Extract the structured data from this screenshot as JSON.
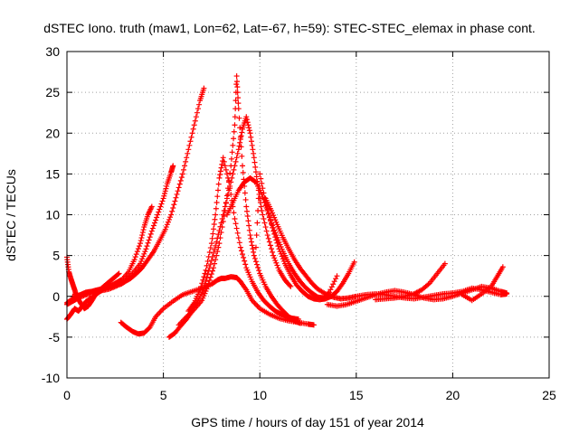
{
  "chart_data": {
    "type": "scatter",
    "title": "dSTEC Iono. truth (maw1, Lon=62, Lat=-67, h=59): STEC-STEC_elemax in phase cont.",
    "xlabel": "GPS time / hours of day 151 of year 2014",
    "ylabel": "dSTEC  / TECUs",
    "xlim": [
      0,
      25
    ],
    "ylim": [
      -10,
      30
    ],
    "xticks": [
      0,
      5,
      10,
      15,
      20,
      25
    ],
    "yticks": [
      -10,
      -5,
      0,
      5,
      10,
      15,
      20,
      25,
      30
    ],
    "grid": true,
    "marker": "+",
    "color": "#ff0000",
    "series": [
      {
        "x": [
          0.0,
          0.2,
          0.5,
          0.8,
          1.0,
          1.3,
          1.6,
          2.0,
          2.4,
          2.8,
          3.0,
          3.3,
          3.6,
          3.9,
          4.2,
          4.5,
          4.8,
          5.1,
          5.4,
          5.7,
          6.0,
          6.3,
          6.6,
          6.9,
          7.1
        ],
        "y": [
          -0.8,
          -0.5,
          0.0,
          0.3,
          0.5,
          0.6,
          0.8,
          1.0,
          1.2,
          1.5,
          1.8,
          2.2,
          2.8,
          3.5,
          4.5,
          5.5,
          6.8,
          8.2,
          10.0,
          12.5,
          15.0,
          18.0,
          21.0,
          24.0,
          25.5
        ]
      },
      {
        "x": [
          0.0,
          0.3,
          0.6,
          1.0,
          1.4,
          1.8,
          2.2,
          2.6,
          3.0,
          3.4,
          3.8,
          4.1,
          4.4,
          4.7,
          5.0,
          5.2,
          5.4,
          5.5
        ],
        "y": [
          -1.0,
          -0.6,
          -0.2,
          0.2,
          0.4,
          0.7,
          0.9,
          1.3,
          1.8,
          2.8,
          4.0,
          5.8,
          8.0,
          10.0,
          12.0,
          13.8,
          15.2,
          16.0
        ]
      },
      {
        "x": [
          0.3,
          0.8,
          1.3,
          1.8,
          2.3,
          2.8,
          3.2,
          3.5,
          3.8,
          4.0,
          4.2,
          4.4
        ],
        "y": [
          0.0,
          0.2,
          0.6,
          0.9,
          1.3,
          1.9,
          3.0,
          4.5,
          6.5,
          8.5,
          10.0,
          11.0
        ]
      },
      {
        "x": [
          2.8,
          3.1,
          3.4,
          3.7,
          4.0,
          4.3,
          4.6,
          5.0,
          5.5,
          6.0,
          6.5,
          7.0,
          7.5,
          7.8,
          8.0,
          8.2,
          8.5,
          8.8,
          9.0,
          9.3,
          9.6,
          10.0,
          10.5,
          11.0,
          11.5,
          12.0,
          12.5,
          12.8
        ],
        "y": [
          -3.2,
          -3.8,
          -4.3,
          -4.6,
          -4.5,
          -3.8,
          -2.5,
          -1.5,
          -0.6,
          0.2,
          0.6,
          1.0,
          1.5,
          2.0,
          2.2,
          2.2,
          2.4,
          2.3,
          1.8,
          0.8,
          -0.5,
          -1.5,
          -2.2,
          -2.7,
          -3.0,
          -3.2,
          -3.4,
          -3.5
        ]
      },
      {
        "x": [
          5.3,
          5.6,
          5.9,
          6.2,
          6.5,
          6.8,
          7.1,
          7.4,
          7.7,
          8.0,
          8.3,
          8.6,
          8.9,
          9.1,
          9.3,
          9.5,
          9.7,
          9.9,
          10.1,
          10.4,
          10.7,
          11.0,
          11.3,
          11.6
        ],
        "y": [
          -5.0,
          -4.5,
          -3.6,
          -2.8,
          -1.8,
          -0.5,
          1.0,
          3.5,
          6.2,
          9.0,
          12.0,
          15.0,
          18.0,
          20.5,
          22.0,
          20.0,
          17.0,
          13.5,
          10.5,
          7.5,
          5.0,
          3.2,
          2.0,
          1.2
        ]
      },
      {
        "x": [
          5.8,
          6.2,
          6.6,
          7.0,
          7.3,
          7.6,
          7.9,
          8.2,
          8.5,
          8.7,
          8.8,
          8.9,
          9.1,
          9.3,
          9.5,
          9.7,
          10.0,
          10.3,
          10.6,
          10.9,
          11.2,
          11.5,
          11.8,
          12.1
        ],
        "y": [
          -3.5,
          -2.5,
          -1.6,
          -0.5,
          1.2,
          3.5,
          6.5,
          10.5,
          16.0,
          21.0,
          27.0,
          23.0,
          16.0,
          11.0,
          7.5,
          5.0,
          2.8,
          1.2,
          0.0,
          -1.0,
          -1.8,
          -2.5,
          -3.0,
          -3.3
        ]
      },
      {
        "x": [
          6.3,
          6.6,
          6.9,
          7.2,
          7.5,
          7.7,
          7.9,
          8.1,
          8.4,
          8.7,
          9.0,
          9.3,
          9.6,
          9.9,
          10.2,
          10.5,
          10.8,
          11.1,
          11.4,
          11.7,
          12.0
        ],
        "y": [
          -1.8,
          -0.8,
          0.8,
          3.2,
          6.5,
          10.0,
          14.5,
          17.0,
          14.0,
          9.5,
          6.0,
          3.5,
          1.8,
          0.5,
          -0.5,
          -1.2,
          -1.8,
          -2.2,
          -2.5,
          -2.7,
          -2.8
        ]
      },
      {
        "x": [
          8.3,
          8.6,
          8.9,
          9.2,
          9.5,
          9.8,
          10.1,
          10.4,
          10.7,
          11.0,
          11.3,
          11.6,
          11.9,
          12.2,
          12.5,
          12.8,
          13.1,
          13.4,
          13.7,
          14.0,
          14.3,
          14.6,
          14.9
        ],
        "y": [
          10.0,
          11.5,
          13.0,
          14.0,
          14.5,
          14.0,
          12.5,
          10.5,
          8.0,
          5.8,
          4.0,
          2.6,
          1.4,
          0.6,
          0.0,
          -0.3,
          -0.4,
          -0.3,
          0.0,
          0.6,
          1.6,
          2.8,
          4.2
        ]
      },
      {
        "x": [
          9.8,
          10.0,
          10.3,
          10.6,
          10.9,
          11.2,
          11.5,
          11.8,
          12.1,
          12.4,
          12.7,
          13.0,
          13.3,
          13.6,
          14.0
        ],
        "y": [
          6.0,
          15.0,
          11.5,
          9.0,
          7.2,
          5.5,
          4.0,
          2.8,
          1.8,
          1.0,
          0.4,
          -0.1,
          -0.2,
          0.5,
          2.5
        ]
      },
      {
        "x": [
          10.3,
          10.6,
          10.9,
          11.2,
          11.5,
          11.8,
          12.1,
          12.4,
          12.7,
          13.0,
          13.4,
          13.8,
          14.2,
          14.6,
          15.0,
          15.5,
          16.0,
          16.5,
          17.0,
          17.5,
          18.0,
          18.5,
          19.0,
          19.5,
          20.0,
          20.5,
          21.0,
          21.5,
          22.0,
          22.5,
          22.8
        ],
        "y": [
          12.0,
          10.5,
          8.8,
          7.2,
          5.8,
          4.5,
          3.4,
          2.5,
          1.6,
          0.9,
          0.3,
          -0.1,
          -0.3,
          -0.2,
          0.0,
          0.2,
          0.3,
          0.2,
          0.0,
          -0.2,
          -0.3,
          -0.1,
          0.1,
          0.3,
          0.4,
          0.6,
          1.0,
          0.8,
          0.5,
          0.2,
          0.3
        ]
      },
      {
        "x": [
          13.5,
          14.0,
          14.5,
          15.0,
          15.5,
          16.0,
          16.5,
          17.0,
          17.5,
          18.0,
          18.5,
          19.0,
          19.5,
          20.0,
          20.5,
          21.0,
          21.5,
          22.0,
          22.5,
          22.8
        ],
        "y": [
          -1.0,
          -1.2,
          -1.0,
          -0.6,
          -0.2,
          0.2,
          0.5,
          0.7,
          0.5,
          0.2,
          -0.2,
          -0.4,
          -0.3,
          0.0,
          0.4,
          0.8,
          1.2,
          1.0,
          0.6,
          0.4
        ]
      },
      {
        "x": [
          16.0,
          16.5,
          17.0,
          17.5,
          18.0,
          18.4,
          18.8,
          19.2,
          19.6
        ],
        "y": [
          -0.4,
          -0.3,
          -0.2,
          0.0,
          0.3,
          0.8,
          1.6,
          2.8,
          4.0
        ]
      },
      {
        "x": [
          20.5,
          21.0,
          21.5,
          22.0,
          22.3,
          22.6
        ],
        "y": [
          0.2,
          -0.5,
          0.3,
          1.2,
          2.4,
          3.6
        ]
      },
      {
        "x": [
          0.0,
          0.1,
          0.2,
          0.3,
          0.4,
          0.5,
          0.7,
          0.9,
          1.1,
          1.3,
          1.5,
          1.8,
          2.1,
          2.4,
          2.7
        ],
        "y": [
          4.8,
          3.0,
          2.2,
          1.5,
          0.8,
          0.0,
          -0.8,
          -1.5,
          -1.2,
          -0.5,
          0.3,
          1.0,
          1.6,
          2.2,
          2.8
        ]
      },
      {
        "x": [
          0.0,
          0.2,
          0.4,
          0.6,
          0.8,
          1.0,
          1.3,
          1.6,
          1.9,
          2.2,
          2.5,
          2.8
        ],
        "y": [
          -2.8,
          -2.2,
          -1.5,
          -1.8,
          -1.2,
          -0.6,
          -0.2,
          0.4,
          0.9,
          1.2,
          1.6,
          2.0
        ]
      }
    ]
  }
}
